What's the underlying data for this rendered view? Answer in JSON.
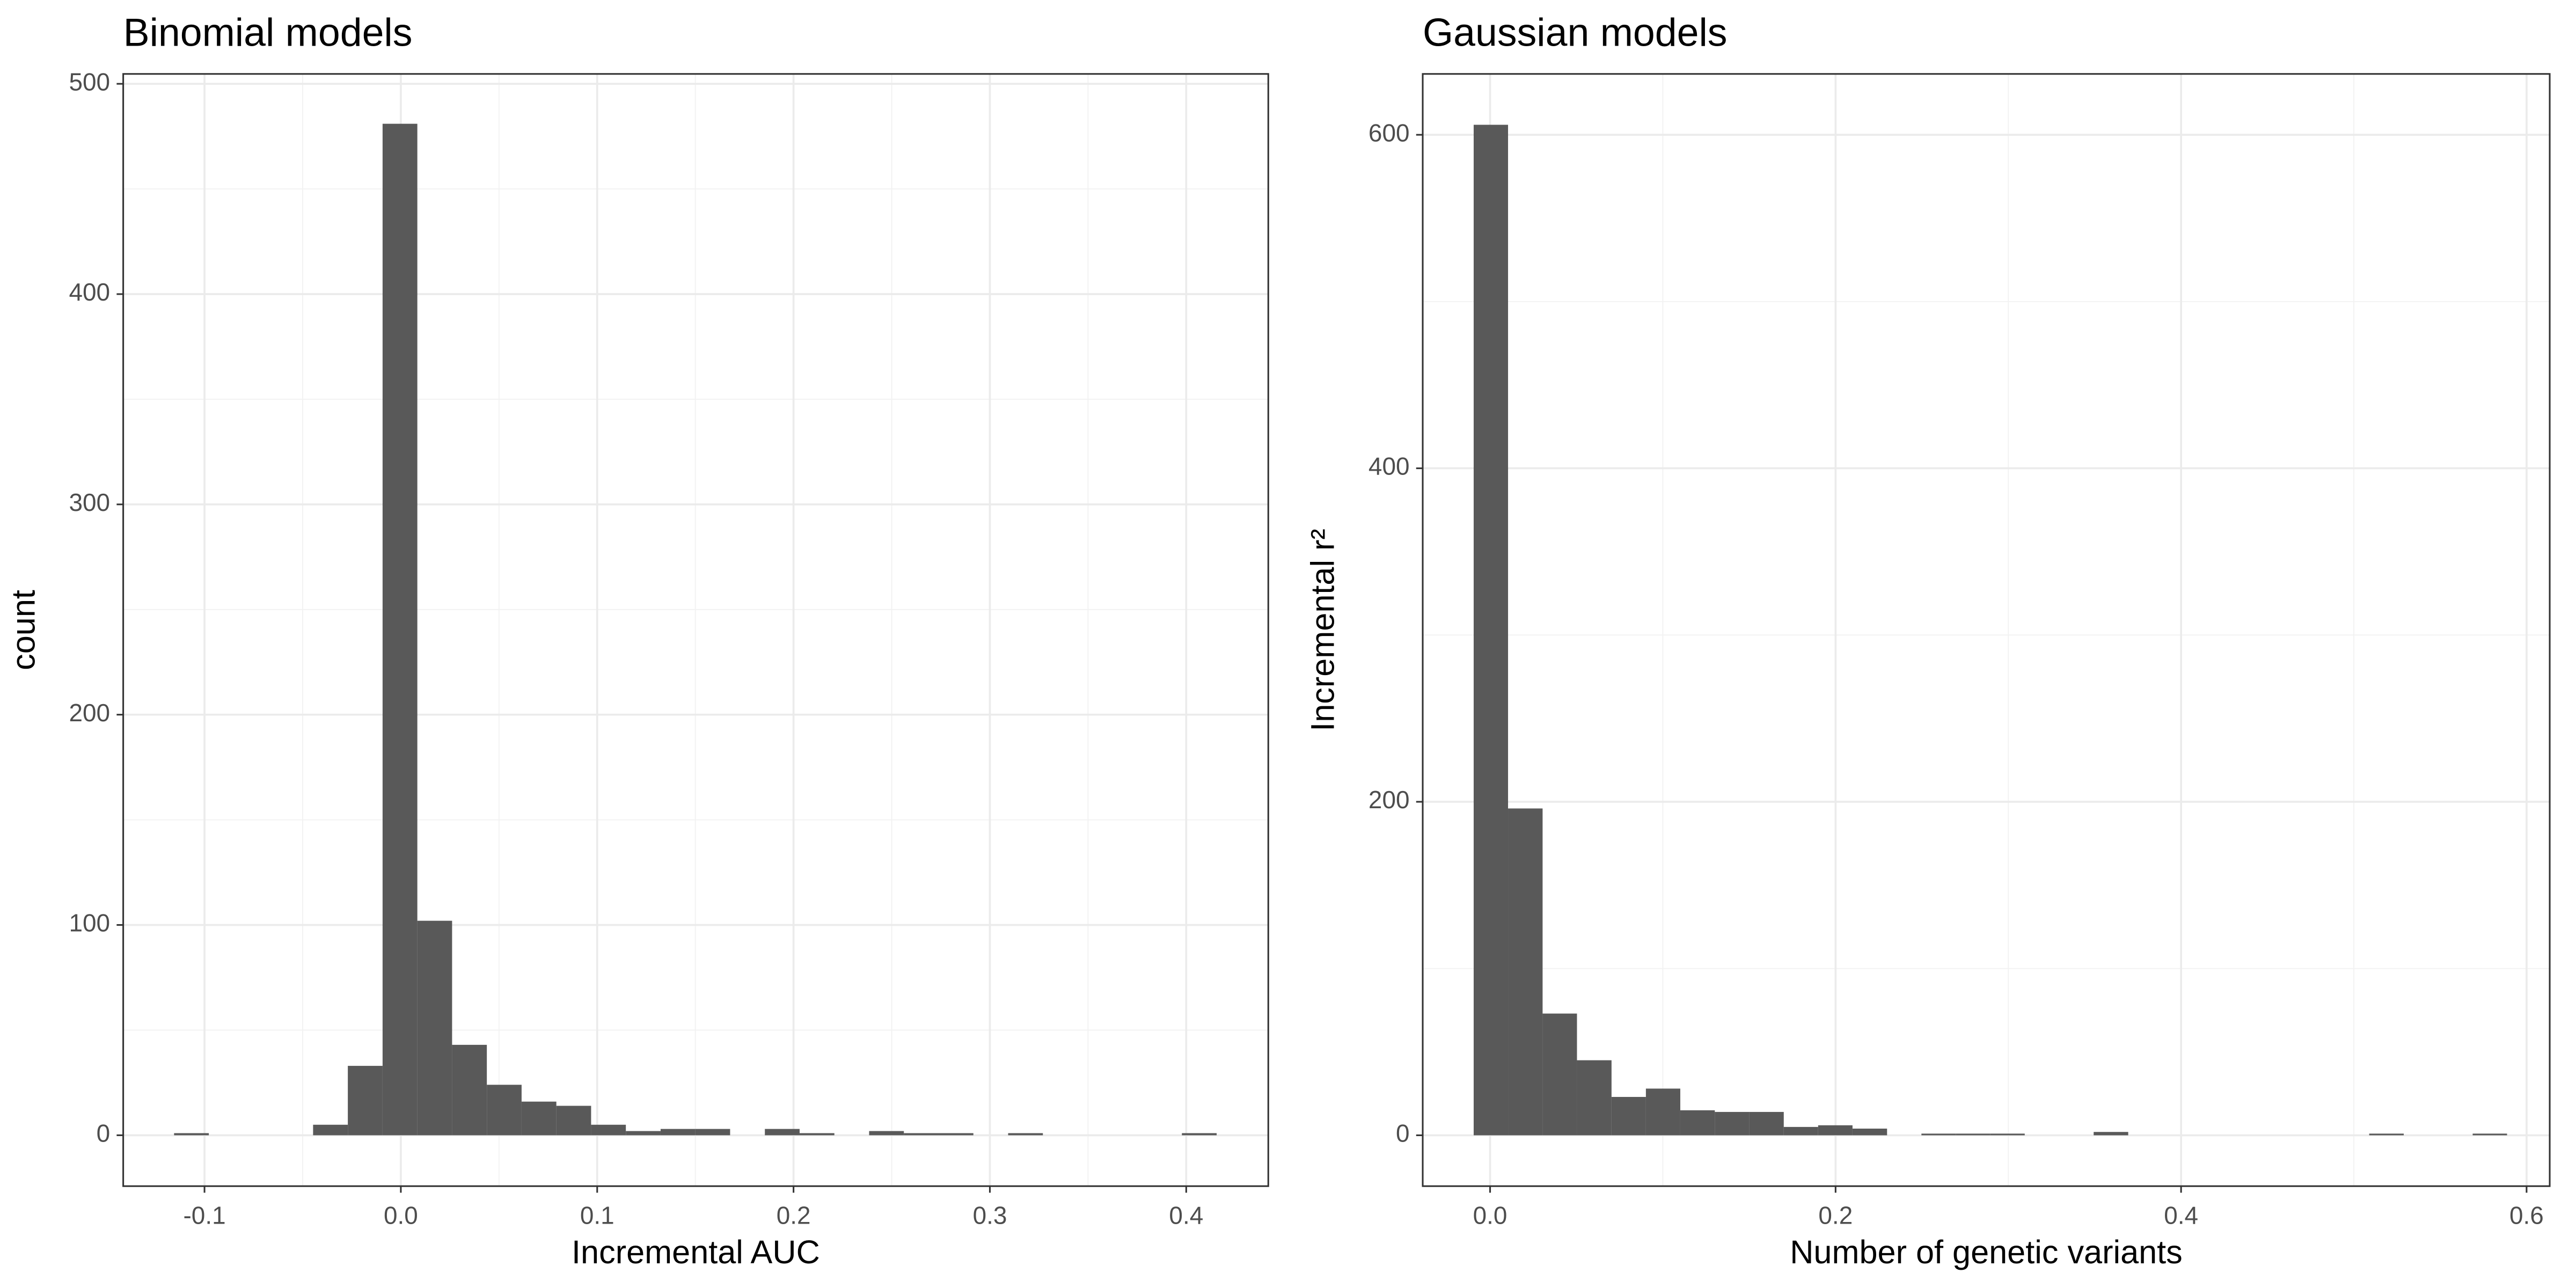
{
  "chart_data": [
    {
      "type": "histogram",
      "title": "Binomial models",
      "x_label": "Incremental AUC",
      "y_label": "count",
      "bins": [
        -0.1155,
        -0.0978,
        -0.0801,
        -0.0624,
        -0.0447,
        -0.027,
        -0.0093,
        0.0084,
        0.0261,
        0.0438,
        0.0615,
        0.0792,
        0.0969,
        0.1146,
        0.1323,
        0.15,
        0.1677,
        0.1854,
        0.2031,
        0.2208,
        0.2385,
        0.2562,
        0.2739,
        0.2916,
        0.3093,
        0.327,
        0.3447,
        0.3624,
        0.3801,
        0.3978,
        0.4155
      ],
      "values": [
        1,
        0,
        0,
        0,
        5,
        33,
        481,
        102,
        43,
        24,
        16,
        14,
        5,
        2,
        3,
        3,
        0,
        3,
        1,
        0,
        2,
        1,
        1,
        0,
        1,
        0,
        0,
        0,
        0,
        1
      ],
      "color": "#595959",
      "xlim": [
        -0.1414,
        0.4418
      ],
      "xticks": [
        -0.1,
        {
          "value": 0,
          "label": "0.0"
        },
        0.1,
        0.2,
        0.3,
        0.4
      ],
      "ylim": [
        -24.2,
        504.7
      ],
      "yticks": [
        0,
        100,
        200,
        300,
        400,
        500
      ],
      "grid": true
    },
    {
      "type": "histogram",
      "title": "Gaussian models",
      "x_label": "Number of genetic variants",
      "y_label": "Incremental r²",
      "bins": [
        -0.0095,
        0.0104,
        0.0304,
        0.0503,
        0.0703,
        0.0902,
        0.1101,
        0.1301,
        0.15,
        0.17,
        0.1899,
        0.2098,
        0.2298,
        0.2497,
        0.2697,
        0.2896,
        0.3095,
        0.3295,
        0.3494,
        0.3694,
        0.3893,
        0.4092,
        0.4292,
        0.4491,
        0.4691,
        0.489,
        0.5089,
        0.5289,
        0.5488,
        0.5688,
        0.5887
      ],
      "values": [
        606,
        196,
        73,
        45,
        23,
        28,
        15,
        14,
        14,
        5,
        6,
        4,
        0,
        1,
        1,
        1,
        0,
        0,
        2,
        0,
        0,
        0,
        0,
        0,
        0,
        0,
        1,
        0,
        0,
        1
      ],
      "color": "#595959",
      "xlim": [
        -0.039,
        0.6134
      ],
      "xticks": [
        {
          "value": 0,
          "label": "0.0"
        },
        0.2,
        0.4,
        0.6
      ],
      "ylim": [
        -30.5,
        636.5
      ],
      "yticks": [
        0,
        200,
        400,
        600
      ],
      "grid": true
    }
  ]
}
